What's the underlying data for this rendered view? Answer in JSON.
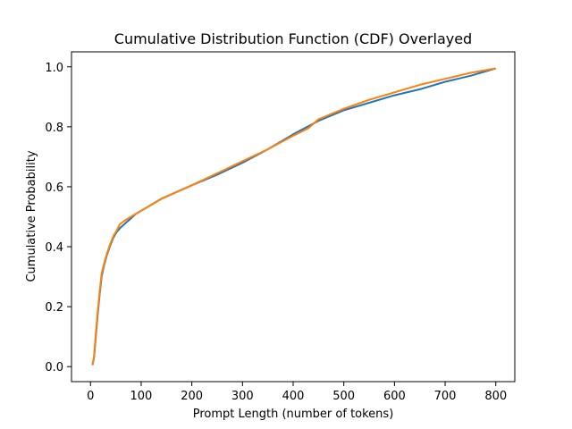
{
  "chart_data": {
    "type": "line",
    "title": "Cumulative Distribution Function (CDF) Overlayed",
    "xlabel": "Prompt Length (number of tokens)",
    "ylabel": "Cumulative Probability",
    "xlim": [
      -37.5,
      837.5
    ],
    "ylim": [
      -0.05,
      1.05
    ],
    "xticks": [
      0,
      100,
      200,
      300,
      400,
      500,
      600,
      700,
      800
    ],
    "xtick_labels": [
      "0",
      "100",
      "200",
      "300",
      "400",
      "500",
      "600",
      "700",
      "800"
    ],
    "yticks": [
      0.0,
      0.2,
      0.4,
      0.6,
      0.8,
      1.0
    ],
    "ytick_labels": [
      "0.0",
      "0.2",
      "0.4",
      "0.6",
      "0.8",
      "1.0"
    ],
    "grid": false,
    "series": [
      {
        "color": "#1f77b4",
        "x": [
          4,
          7,
          10,
          14,
          18,
          22,
          27,
          32,
          38,
          45,
          52,
          60,
          70,
          80,
          90,
          100,
          120,
          140,
          160,
          180,
          200,
          250,
          300,
          350,
          400,
          450,
          500,
          550,
          600,
          650,
          700,
          750,
          800
        ],
        "y": [
          0.005,
          0.03,
          0.09,
          0.17,
          0.24,
          0.3,
          0.34,
          0.37,
          0.4,
          0.43,
          0.45,
          0.465,
          0.48,
          0.495,
          0.51,
          0.52,
          0.54,
          0.56,
          0.575,
          0.59,
          0.605,
          0.64,
          0.68,
          0.725,
          0.775,
          0.82,
          0.855,
          0.88,
          0.905,
          0.925,
          0.95,
          0.97,
          0.995
        ]
      },
      {
        "color": "#ff7f0e",
        "x": [
          4,
          7,
          10,
          14,
          18,
          22,
          27,
          32,
          38,
          45,
          52,
          58,
          62,
          70,
          80,
          90,
          100,
          120,
          140,
          160,
          180,
          200,
          250,
          300,
          350,
          400,
          430,
          450,
          500,
          550,
          600,
          620,
          650,
          700,
          750,
          800
        ],
        "y": [
          0.005,
          0.035,
          0.1,
          0.18,
          0.25,
          0.31,
          0.345,
          0.375,
          0.405,
          0.435,
          0.455,
          0.475,
          0.48,
          0.49,
          0.5,
          0.51,
          0.52,
          0.54,
          0.56,
          0.575,
          0.59,
          0.605,
          0.645,
          0.685,
          0.725,
          0.77,
          0.795,
          0.825,
          0.86,
          0.89,
          0.915,
          0.925,
          0.94,
          0.96,
          0.98,
          0.995
        ]
      }
    ]
  }
}
